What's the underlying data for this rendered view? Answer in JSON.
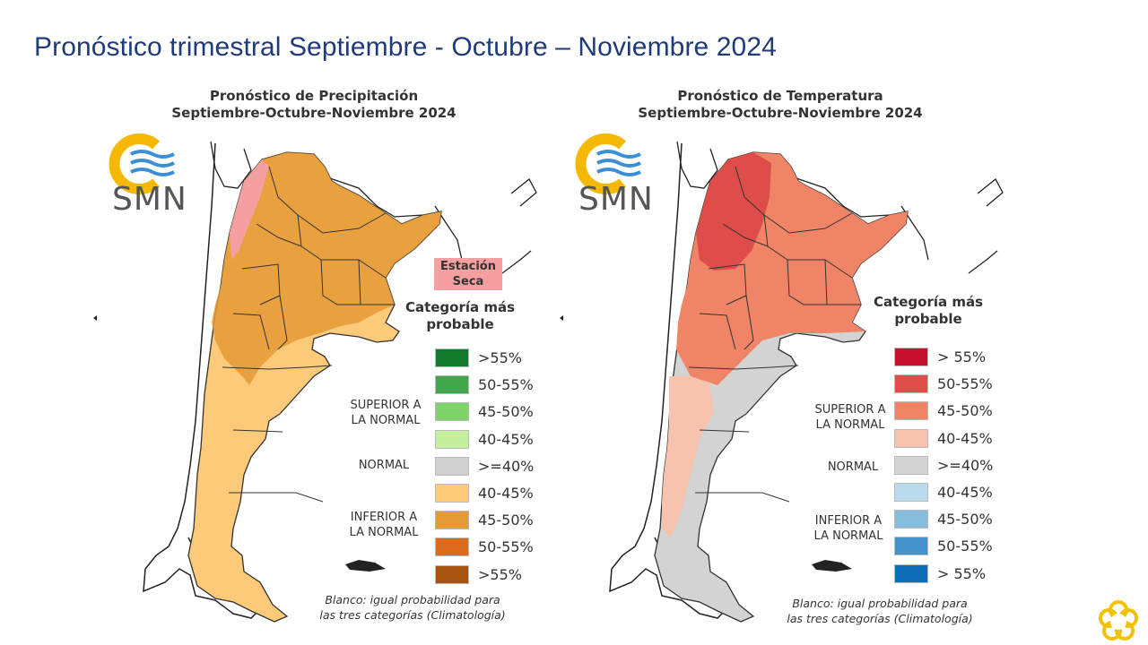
{
  "slide": {
    "title": "Pronóstico trimestral Septiembre - Octubre – Noviembre 2024"
  },
  "logo": {
    "text": "SMN",
    "colors": {
      "ring": "#f5b800",
      "waves": "#3a8fd6"
    }
  },
  "precipitation_map": {
    "title_line1": "Pronóstico de Precipitación",
    "title_line2": "Septiembre-Octubre-Noviembre 2024",
    "dry_season_label_line1": "Estación",
    "dry_season_label_line2": "Seca",
    "legend_title_line1": "Categoría más",
    "legend_title_line2": "probable",
    "groups": {
      "superior_line1": "SUPERIOR A",
      "superior_line2": "LA NORMAL",
      "normal": "NORMAL",
      "inferior_line1": "INFERIOR A",
      "inferior_line2": "LA NORMAL"
    },
    "legend": [
      {
        "label": ">55%",
        "color": "#137a2e"
      },
      {
        "label": "50-55%",
        "color": "#43a64a"
      },
      {
        "label": "45-50%",
        "color": "#7fd36b"
      },
      {
        "label": "40-45%",
        "color": "#c6f0a0"
      },
      {
        "label": ">=40%",
        "color": "#d0d0d0"
      },
      {
        "label": "40-45%",
        "color": "#fcca78"
      },
      {
        "label": "45-50%",
        "color": "#e59a35"
      },
      {
        "label": "50-55%",
        "color": "#db6a1c"
      },
      {
        "label": ">55%",
        "color": "#a8520f"
      }
    ],
    "note_line1": "Blanco: igual probabilidad para",
    "note_line2": "las tres categorías (Climatología)"
  },
  "temperature_map": {
    "title_line1": "Pronóstico de Temperatura",
    "title_line2": "Septiembre-Octubre-Noviembre 2024",
    "legend_title_line1": "Categoría más",
    "legend_title_line2": "probable",
    "groups": {
      "superior_line1": "SUPERIOR A",
      "superior_line2": "LA NORMAL",
      "normal": "NORMAL",
      "inferior_line1": "INFERIOR A",
      "inferior_line2": "LA NORMAL"
    },
    "legend": [
      {
        "label": "> 55%",
        "color": "#c8102e"
      },
      {
        "label": "50-55%",
        "color": "#de4d4a"
      },
      {
        "label": "45-50%",
        "color": "#ef8566"
      },
      {
        "label": "40-45%",
        "color": "#f6c4ae"
      },
      {
        "label": ">=40%",
        "color": "#d3d3d3"
      },
      {
        "label": "40-45%",
        "color": "#b9dbeb"
      },
      {
        "label": "45-50%",
        "color": "#86bcdc"
      },
      {
        "label": "50-55%",
        "color": "#4392c9"
      },
      {
        "label": "> 55%",
        "color": "#0c6cb5"
      }
    ],
    "note_line1": "Blanco: igual probabilidad para",
    "note_line2": "las tres categorías (Climatología)"
  },
  "corner_logo": {
    "color": "#f2c200"
  }
}
